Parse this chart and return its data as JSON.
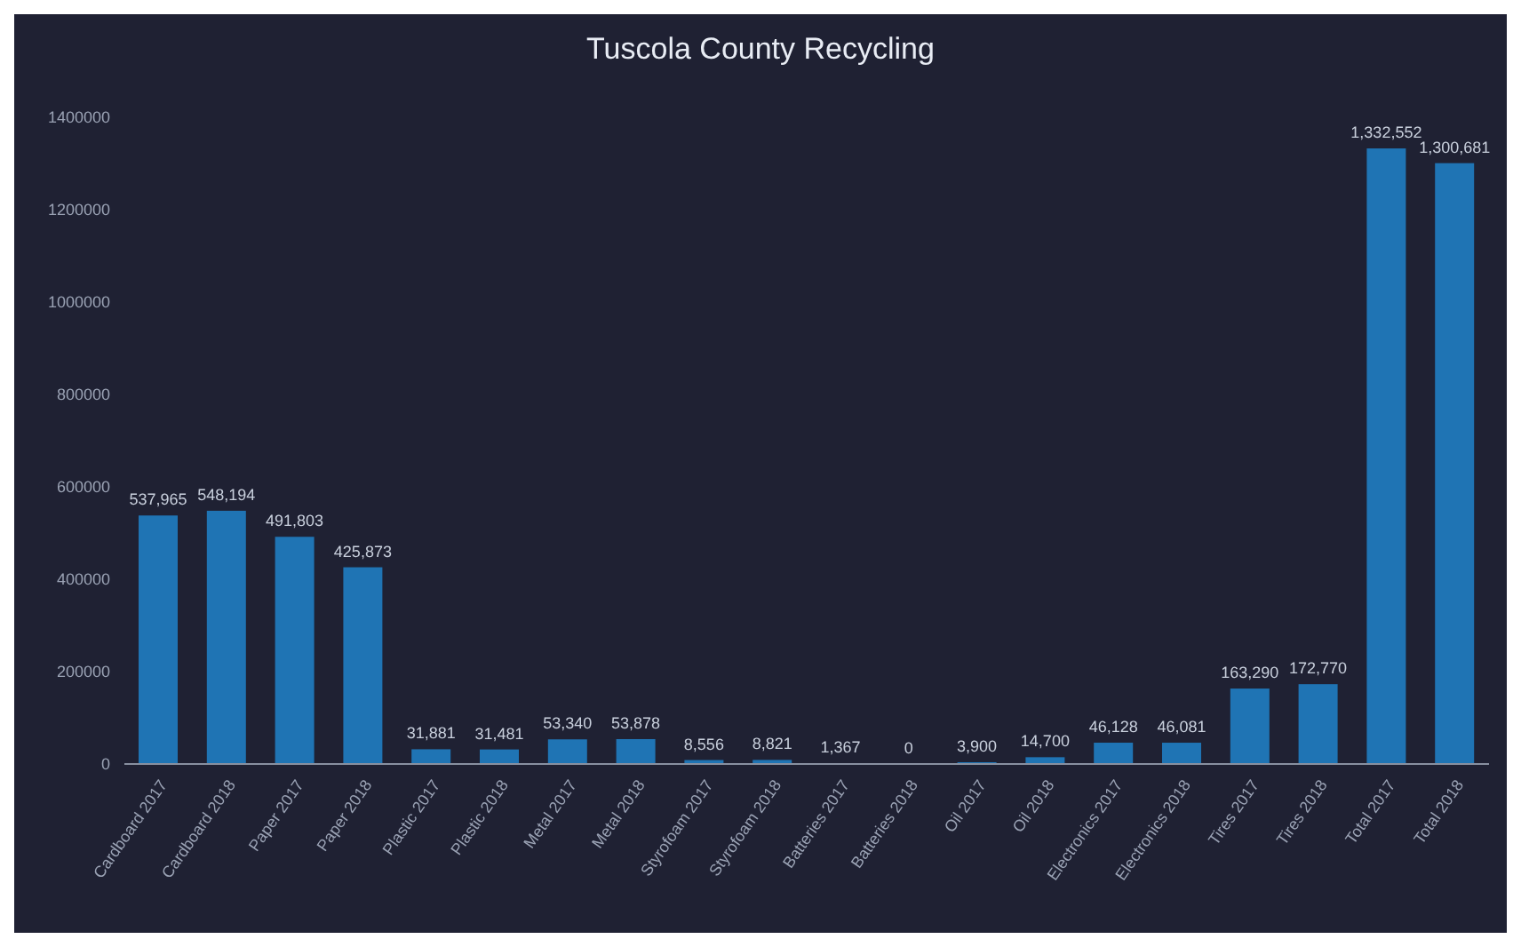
{
  "chart_data": {
    "type": "bar",
    "title": "Tuscola County Recycling",
    "categories": [
      "Cardboard 2017",
      "Cardboard 2018",
      "Paper 2017",
      "Paper 2018",
      "Plastic 2017",
      "Plastic 2018",
      "Metal 2017",
      "Metal 2018",
      "Styrofoam 2017",
      "Styrofoam 2018",
      "Batteries 2017",
      "Batteries 2018",
      "Oil 2017",
      "Oil 2018",
      "Electronics 2017",
      "Electronics 2018",
      "Tires 2017",
      "Tires 2018",
      "Total 2017",
      "Total 2018"
    ],
    "values": [
      537965,
      548194,
      491803,
      425873,
      31881,
      31481,
      53340,
      53878,
      8556,
      8821,
      1367,
      0,
      3900,
      14700,
      46128,
      46081,
      163290,
      172770,
      1332552,
      1300681
    ],
    "value_labels": [
      "537,965",
      "548,194",
      "491,803",
      "425,873",
      "31,881",
      "31,481",
      "53,340",
      "53,878",
      "8,556",
      "8,821",
      "1,367",
      "0",
      "3,900",
      "14,700",
      "46,128",
      "46,081",
      "163,290",
      "172,770",
      "1,332,552",
      "1,300,681"
    ],
    "color": "#1f74b4",
    "ylim": [
      0,
      1400000
    ],
    "yticks": [
      0,
      200000,
      400000,
      600000,
      800000,
      1000000,
      1200000,
      1400000
    ],
    "grid": false
  }
}
